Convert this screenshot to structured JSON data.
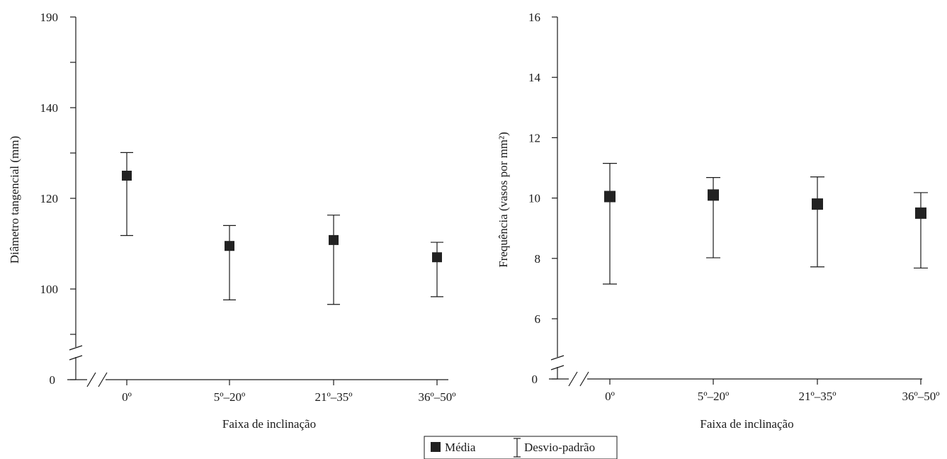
{
  "legend": {
    "mean_label": "Média",
    "sd_label": "Desvio-padrão"
  },
  "colors": {
    "marker": "#222222",
    "line": "#1a1a1a"
  },
  "chart_data": [
    {
      "type": "scatter",
      "title": "",
      "xlabel": "Faixa de inclinação",
      "ylabel": "Diâmetro tangencial (mm)",
      "categories": [
        "0º",
        "5º–20º",
        "21º–35º",
        "36º–50º"
      ],
      "axis_break": true,
      "break_floor_label": "0",
      "yticks": [
        {
          "value": 100,
          "label": "100"
        },
        {
          "value": 120,
          "label": "120"
        },
        {
          "value": 140,
          "label": "140"
        },
        {
          "value": 190,
          "label": "190"
        }
      ],
      "series": [
        {
          "mean": [
            125,
            109.5,
            110.8,
            107
          ],
          "sd_low": [
            111.8,
            97.6,
            96.6,
            98.3
          ],
          "sd_high": [
            130.1,
            114,
            116.3,
            110.3
          ]
        }
      ]
    },
    {
      "type": "scatter",
      "title": "",
      "xlabel": "Faixa de inclinação",
      "ylabel": "Frequência (vasos por mm²)",
      "categories": [
        "0º",
        "5º–20º",
        "21º–35º",
        "36º–50º"
      ],
      "axis_break": true,
      "break_floor_label": "0",
      "ylim": [
        4.8,
        16
      ],
      "yticks": [
        {
          "value": 6,
          "label": "6"
        },
        {
          "value": 8,
          "label": "8"
        },
        {
          "value": 10,
          "label": "10"
        },
        {
          "value": 12,
          "label": "12"
        },
        {
          "value": 14,
          "label": "14"
        },
        {
          "value": 16,
          "label": "16"
        }
      ],
      "series": [
        {
          "mean": [
            10.05,
            10.1,
            9.8,
            9.5
          ],
          "sd_low": [
            7.15,
            8.02,
            7.72,
            7.68
          ],
          "sd_high": [
            11.15,
            10.68,
            10.7,
            10.18
          ]
        }
      ]
    }
  ]
}
